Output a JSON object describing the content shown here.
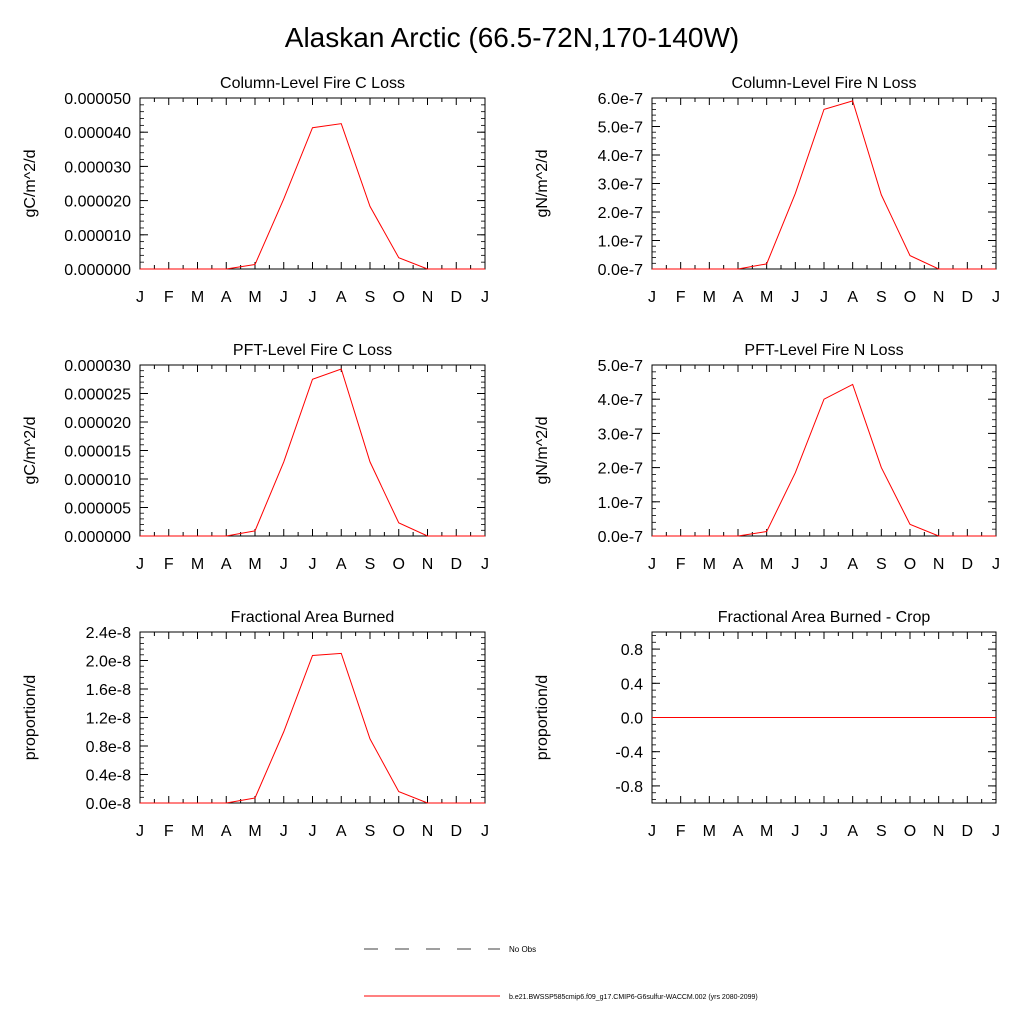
{
  "page_title": "Alaskan Arctic (66.5-72N,170-140W)",
  "months": [
    "J",
    "F",
    "M",
    "A",
    "M",
    "J",
    "J",
    "A",
    "S",
    "O",
    "N",
    "D",
    "J"
  ],
  "colors": {
    "series": "#ff0000",
    "axis": "#000000",
    "dashed": "#000000"
  },
  "legend": {
    "no_obs": "No Obs",
    "model": "b.e21.BWSSP585cmip6.f09_g17.CMIP6-G6sulfur-WACCM.002 (yrs 2080-2099)"
  },
  "chart_data": [
    {
      "type": "line",
      "title": "Column-Level Fire C Loss",
      "ylabel": "gC/m^2/d",
      "ylim": [
        0,
        5e-05
      ],
      "yticks": [
        0,
        1e-05,
        2e-05,
        3e-05,
        4e-05,
        5e-05
      ],
      "ytick_labels": [
        "0.000000",
        "0.000010",
        "0.000020",
        "0.000030",
        "0.000040",
        "0.000050"
      ],
      "series": [
        {
          "values": [
            0,
            0,
            0,
            0,
            1.3e-06,
            2.05e-05,
            4.13e-05,
            4.25e-05,
            1.83e-05,
            3.3e-06,
            0,
            0,
            0
          ]
        }
      ]
    },
    {
      "type": "line",
      "title": "Column-Level Fire N Loss",
      "ylabel": "gN/m^2/d",
      "ylim": [
        0,
        6e-07
      ],
      "yticks": [
        0,
        1e-07,
        2e-07,
        3e-07,
        4e-07,
        5e-07,
        6e-07
      ],
      "ytick_labels": [
        "0.0e-7",
        "1.0e-7",
        "2.0e-7",
        "3.0e-7",
        "4.0e-7",
        "5.0e-7",
        "6.0e-7"
      ],
      "series": [
        {
          "values": [
            0,
            0,
            0,
            0,
            1.8e-08,
            2.65e-07,
            5.6e-07,
            5.9e-07,
            2.6e-07,
            4.7e-08,
            0,
            0,
            0
          ]
        }
      ]
    },
    {
      "type": "line",
      "title": "PFT-Level Fire C Loss",
      "ylabel": "gC/m^2/d",
      "ylim": [
        0,
        3e-05
      ],
      "yticks": [
        0,
        5e-06,
        1e-05,
        1.5e-05,
        2e-05,
        2.5e-05,
        3e-05
      ],
      "ytick_labels": [
        "0.000000",
        "0.000005",
        "0.000010",
        "0.000015",
        "0.000020",
        "0.000025",
        "0.000030"
      ],
      "series": [
        {
          "values": [
            0,
            0,
            0,
            0,
            9e-07,
            1.3e-05,
            2.75e-05,
            2.93e-05,
            1.3e-05,
            2.3e-06,
            0,
            0,
            0
          ]
        }
      ]
    },
    {
      "type": "line",
      "title": "PFT-Level Fire N Loss",
      "ylabel": "gN/m^2/d",
      "ylim": [
        0,
        5e-07
      ],
      "yticks": [
        0,
        1e-07,
        2e-07,
        3e-07,
        4e-07,
        5e-07
      ],
      "ytick_labels": [
        "0.0e-7",
        "1.0e-7",
        "2.0e-7",
        "3.0e-7",
        "4.0e-7",
        "5.0e-7"
      ],
      "series": [
        {
          "values": [
            0,
            0,
            0,
            0,
            1.3e-08,
            1.85e-07,
            4e-07,
            4.43e-07,
            2e-07,
            3.4e-08,
            0,
            0,
            0
          ]
        }
      ]
    },
    {
      "type": "line",
      "title": "Fractional Area Burned",
      "ylabel": "proportion/d",
      "ylim": [
        0,
        2.4e-08
      ],
      "yticks": [
        0,
        4e-09,
        8e-09,
        1.2e-08,
        1.6e-08,
        2e-08,
        2.4e-08
      ],
      "ytick_labels": [
        "0.0e-8",
        "0.4e-8",
        "0.8e-8",
        "1.2e-8",
        "1.6e-8",
        "2.0e-8",
        "2.4e-8"
      ],
      "series": [
        {
          "values": [
            0,
            0,
            0,
            0,
            7e-10,
            1e-08,
            2.07e-08,
            2.1e-08,
            9e-09,
            1.6e-09,
            0,
            0,
            0
          ]
        }
      ]
    },
    {
      "type": "line",
      "title": "Fractional Area Burned - Crop",
      "ylabel": "proportion/d",
      "ylim": [
        -1.0,
        1.0
      ],
      "yticks": [
        -0.8,
        -0.4,
        0.0,
        0.4,
        0.8
      ],
      "ytick_labels": [
        "-0.8",
        "-0.4",
        "0.0",
        "0.4",
        "0.8"
      ],
      "series": [
        {
          "values": [
            0,
            0,
            0,
            0,
            0,
            0,
            0,
            0,
            0,
            0,
            0,
            0,
            0
          ]
        }
      ]
    }
  ]
}
